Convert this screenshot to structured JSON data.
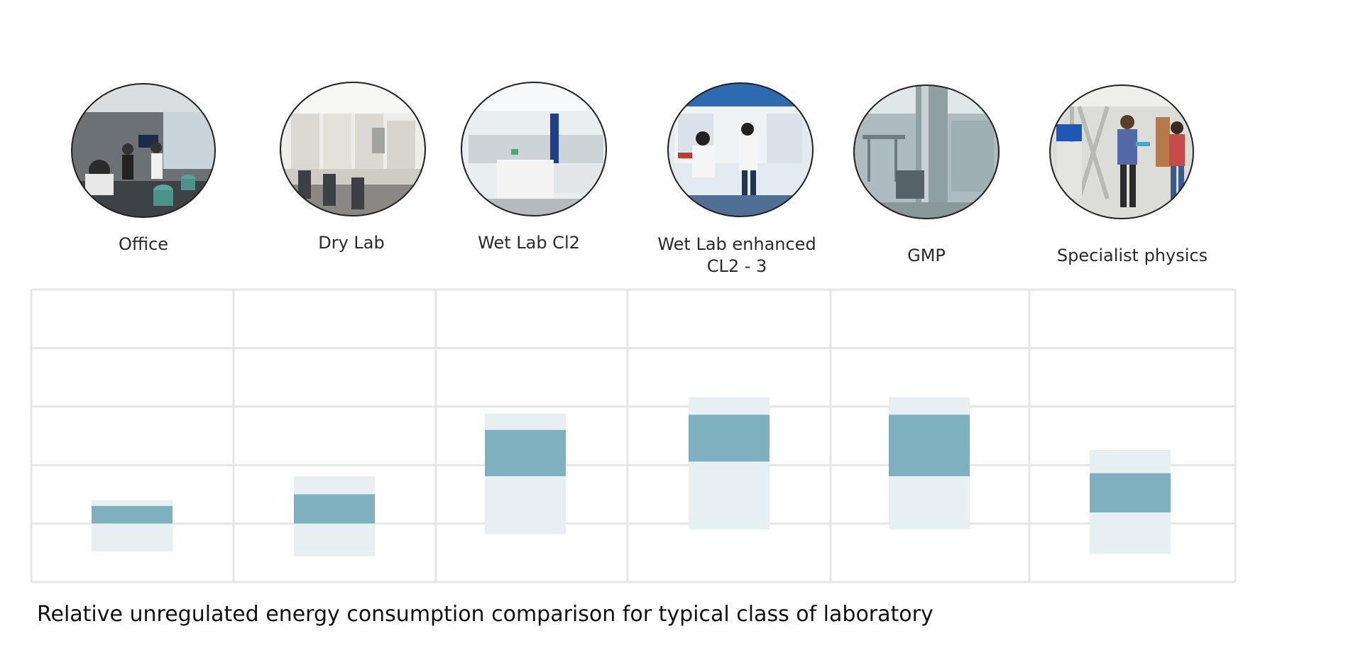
{
  "colors": {
    "dark_band": "#7fb0bf",
    "light_band": "#e6f0f2",
    "grid": "#e6e6e6",
    "photo_border": "#222222",
    "text": "#222222"
  },
  "chart_data": {
    "type": "bar",
    "title": "",
    "xlabel": "",
    "ylabel": "",
    "categories": [
      "Office",
      "Dry Lab",
      "Wet Lab Cl2",
      "Wet Lab enhanced\nCL2 - 3",
      "GMP",
      "Specialist physics"
    ],
    "ylim": [
      0,
      5
    ],
    "grid": true,
    "legend": "none",
    "series": [
      {
        "role": "range",
        "low": [
          0.52,
          0.44,
          0.82,
          0.9,
          0.9,
          0.48
        ],
        "high": [
          1.4,
          1.81,
          2.88,
          3.16,
          3.16,
          2.26
        ]
      },
      {
        "role": "typical",
        "low": [
          1.0,
          1.0,
          1.81,
          2.06,
          1.81,
          1.19
        ],
        "high": [
          1.3,
          1.5,
          2.6,
          2.86,
          2.86,
          1.86
        ]
      }
    ]
  },
  "photos": [
    {
      "category": "Office",
      "icon": "office-photo"
    },
    {
      "category": "Dry Lab",
      "icon": "dry-lab-photo"
    },
    {
      "category": "Wet Lab Cl2",
      "icon": "wet-lab-photo"
    },
    {
      "category": "Wet Lab enhanced CL2 - 3",
      "icon": "wet-lab-enhanced-photo"
    },
    {
      "category": "GMP",
      "icon": "gmp-photo"
    },
    {
      "category": "Specialist physics",
      "icon": "specialist-physics-photo"
    }
  ],
  "caption": "Relative unregulated energy consumption comparison for typical class of laboratory"
}
